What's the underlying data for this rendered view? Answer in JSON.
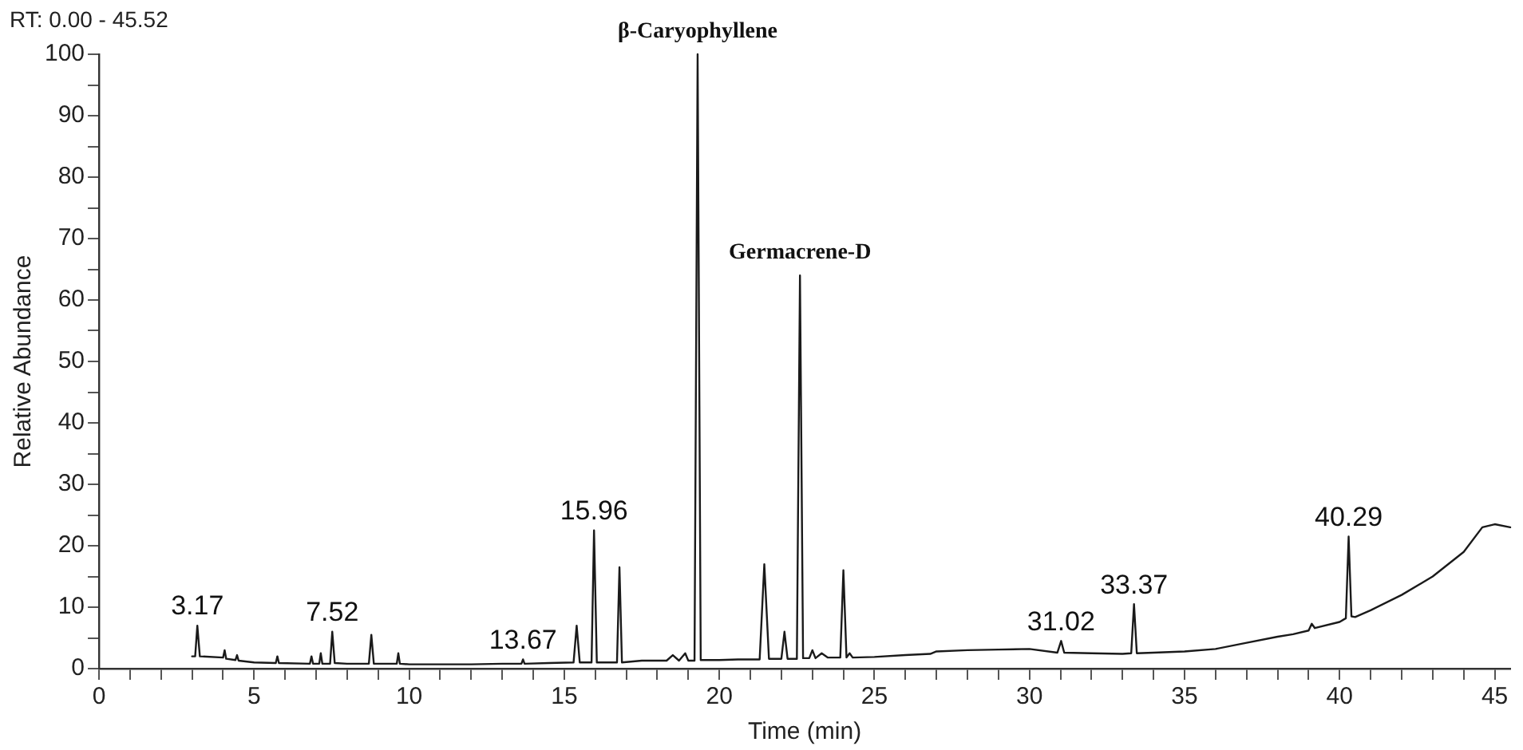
{
  "chart_data": {
    "type": "line",
    "title": "RT: 0.00 - 45.52",
    "xlabel": "Time (min)",
    "ylabel": "Relative Abundance",
    "xlim": [
      0,
      45.5
    ],
    "ylim": [
      0,
      100
    ],
    "xticks": [
      0,
      {
        "value": 1,
        "label": null
      },
      {
        "value": 2,
        "label": null
      },
      {
        "value": 3,
        "label": null
      },
      {
        "value": 4,
        "label": null
      },
      5,
      {
        "value": 6,
        "label": null
      },
      {
        "value": 7,
        "label": null
      },
      {
        "value": 8,
        "label": null
      },
      {
        "value": 9,
        "label": null
      },
      10,
      {
        "value": 11,
        "label": null
      },
      {
        "value": 12,
        "label": null
      },
      {
        "value": 13,
        "label": null
      },
      {
        "value": 14,
        "label": null
      },
      15,
      {
        "value": 16,
        "label": null
      },
      {
        "value": 17,
        "label": null
      },
      {
        "value": 18,
        "label": null
      },
      {
        "value": 19,
        "label": null
      },
      20,
      {
        "value": 21,
        "label": null
      },
      {
        "value": 22,
        "label": null
      },
      {
        "value": 23,
        "label": null
      },
      {
        "value": 24,
        "label": null
      },
      25,
      {
        "value": 26,
        "label": null
      },
      {
        "value": 27,
        "label": null
      },
      {
        "value": 28,
        "label": null
      },
      {
        "value": 29,
        "label": null
      },
      30,
      {
        "value": 31,
        "label": null
      },
      {
        "value": 32,
        "label": null
      },
      {
        "value": 33,
        "label": null
      },
      {
        "value": 34,
        "label": null
      },
      35,
      {
        "value": 36,
        "label": null
      },
      {
        "value": 37,
        "label": null
      },
      {
        "value": 38,
        "label": null
      },
      {
        "value": 39,
        "label": null
      },
      40,
      {
        "value": 41,
        "label": null
      },
      {
        "value": 42,
        "label": null
      },
      {
        "value": 43,
        "label": null
      },
      {
        "value": 44,
        "label": null
      },
      45
    ],
    "yticks": [
      0,
      {
        "value": 5,
        "label": null
      },
      10,
      {
        "value": 15,
        "label": null
      },
      20,
      {
        "value": 25,
        "label": null
      },
      30,
      {
        "value": 35,
        "label": null
      },
      40,
      {
        "value": 45,
        "label": null
      },
      50,
      {
        "value": 55,
        "label": null
      },
      60,
      {
        "value": 65,
        "label": null
      },
      70,
      {
        "value": 75,
        "label": null
      },
      80,
      {
        "value": 85,
        "label": null
      },
      90,
      {
        "value": 95,
        "label": null
      },
      100
    ],
    "grid": false,
    "legend": false,
    "marker": "none",
    "line_style": "solid",
    "series": [
      {
        "color": "#1a1a1a",
        "x": [
          3.0,
          3.1,
          3.17,
          3.25,
          4.0,
          4.05,
          4.1,
          4.4,
          4.45,
          4.5,
          5.0,
          5.7,
          5.75,
          5.8,
          6.8,
          6.85,
          6.9,
          7.1,
          7.15,
          7.2,
          7.45,
          7.52,
          7.6,
          8.0,
          8.7,
          8.78,
          8.86,
          9.6,
          9.65,
          9.7,
          10.0,
          11.0,
          12.0,
          13.0,
          13.62,
          13.67,
          13.72,
          14.5,
          15.3,
          15.4,
          15.5,
          15.88,
          15.96,
          16.05,
          16.4,
          16.7,
          16.78,
          16.86,
          17.5,
          18.3,
          18.5,
          18.7,
          18.9,
          19.0,
          19.2,
          19.3,
          19.4,
          20.0,
          20.6,
          21.3,
          21.45,
          21.6,
          22.0,
          22.1,
          22.2,
          22.5,
          22.6,
          22.7,
          22.9,
          23.0,
          23.1,
          23.3,
          23.5,
          23.9,
          24.0,
          24.1,
          24.2,
          24.3,
          25.0,
          26.0,
          26.8,
          27.0,
          28.0,
          29.0,
          30.0,
          30.9,
          31.02,
          31.12,
          32.0,
          33.0,
          33.28,
          33.37,
          33.46,
          34.0,
          35.0,
          36.0,
          37.0,
          38.0,
          38.5,
          39.0,
          39.1,
          39.2,
          40.0,
          40.2,
          40.29,
          40.38,
          40.5,
          41.0,
          42.0,
          43.0,
          44.0,
          44.6,
          45.0,
          45.5
        ],
        "values": [
          2,
          2,
          7,
          2,
          1.8,
          3,
          1.6,
          1.4,
          2.2,
          1.3,
          1,
          0.9,
          2,
          0.9,
          0.8,
          2,
          0.8,
          0.8,
          2.5,
          0.8,
          0.8,
          6,
          0.9,
          0.8,
          0.8,
          5.5,
          0.8,
          0.8,
          2.5,
          0.8,
          0.7,
          0.7,
          0.7,
          0.8,
          0.8,
          1.5,
          0.8,
          0.9,
          1,
          7,
          1,
          1,
          22.5,
          1,
          1,
          1,
          16.5,
          1,
          1.3,
          1.3,
          2.2,
          1.3,
          2.5,
          1.3,
          1.3,
          100,
          1.4,
          1.4,
          1.5,
          1.5,
          17,
          1.6,
          1.6,
          6,
          1.6,
          1.6,
          64,
          1.7,
          1.7,
          3,
          1.7,
          2.5,
          1.8,
          1.8,
          16,
          1.8,
          2.5,
          1.8,
          1.9,
          2.2,
          2.4,
          2.8,
          3,
          3.1,
          3.2,
          2.6,
          4.5,
          2.6,
          2.5,
          2.4,
          2.5,
          10.5,
          2.5,
          2.6,
          2.8,
          3.2,
          4.2,
          5.2,
          5.6,
          6.2,
          7.3,
          6.6,
          7.6,
          8.2,
          21.5,
          8.5,
          8.4,
          9.5,
          12,
          15,
          19,
          23,
          23.5,
          23
        ]
      }
    ],
    "annotations": [
      {
        "text": "3.17",
        "x": 3.17,
        "y": 7
      },
      {
        "text": "7.52",
        "x": 7.52,
        "y": 6
      },
      {
        "text": "13.67",
        "x": 13.67,
        "y": 1.5
      },
      {
        "text": "15.96",
        "x": 15.96,
        "y": 22.5
      },
      {
        "text": "β-Caryophyllene",
        "x": 19.3,
        "y": 100
      },
      {
        "text": "Germacrene-D",
        "x": 22.6,
        "y": 64
      },
      {
        "text": "31.02",
        "x": 31.02,
        "y": 4.5
      },
      {
        "text": "33.37",
        "x": 33.37,
        "y": 10.5
      },
      {
        "text": "40.29",
        "x": 40.29,
        "y": 21.5
      }
    ]
  }
}
